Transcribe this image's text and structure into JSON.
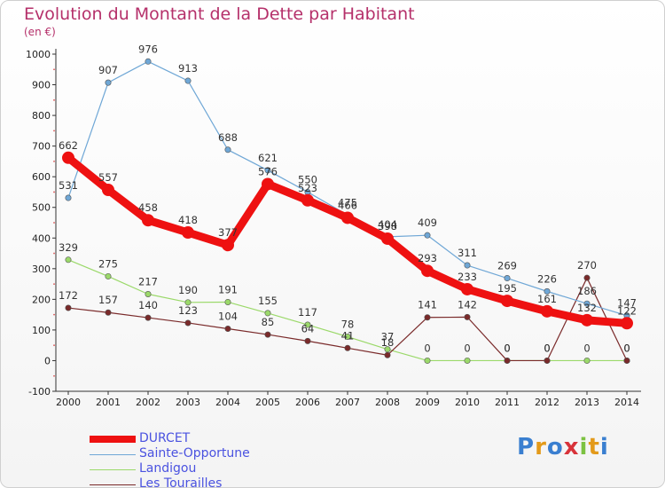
{
  "header": {
    "title": "Evolution du Montant de la Dette par Habitant",
    "unit": "(en €)"
  },
  "chart_data": {
    "type": "line",
    "title": "Evolution du Montant de la Dette par Habitant",
    "ylabel": "(en €)",
    "xlabel": "",
    "x": [
      2000,
      2001,
      2002,
      2003,
      2004,
      2005,
      2006,
      2007,
      2008,
      2009,
      2010,
      2011,
      2012,
      2013,
      2014
    ],
    "ylim": [
      -100,
      1000
    ],
    "yticks": [
      -100,
      0,
      100,
      200,
      300,
      400,
      500,
      600,
      700,
      800,
      900,
      1000
    ],
    "grid": false,
    "legend_position": "bottom-left",
    "series": [
      {
        "name": "DURCET",
        "color": "#ee1111",
        "values": [
          662,
          557,
          458,
          418,
          377,
          576,
          523,
          466,
          398,
          293,
          233,
          195,
          161,
          132,
          122
        ]
      },
      {
        "name": "Sainte-Opportune",
        "color": "#6fa7d6",
        "values": [
          531,
          907,
          976,
          913,
          688,
          621,
          550,
          475,
          404,
          409,
          311,
          269,
          226,
          186,
          147
        ]
      },
      {
        "name": "Landigou",
        "color": "#9bd96a",
        "values": [
          329,
          275,
          217,
          190,
          191,
          155,
          117,
          78,
          37,
          0,
          0,
          0,
          0,
          0,
          0
        ]
      },
      {
        "name": "Les Tourailles",
        "color": "#7a2a2a",
        "values": [
          172,
          157,
          140,
          123,
          104,
          85,
          64,
          41,
          18,
          141,
          142,
          0,
          0,
          270,
          0
        ]
      }
    ]
  },
  "legend": {
    "items": [
      {
        "label": "DURCET",
        "color": "#ee1111"
      },
      {
        "label": "Sainte-Opportune",
        "color": "#6fa7d6"
      },
      {
        "label": "Landigou",
        "color": "#9bd96a"
      },
      {
        "label": "Les Tourailles",
        "color": "#7a2a2a"
      }
    ]
  },
  "logo": {
    "letters": [
      "P",
      "r",
      "o",
      "x",
      "i",
      "t",
      "i"
    ],
    "colors": [
      "#3a7fd0",
      "#e39a1a",
      "#3a7fd0",
      "#d8333a",
      "#7cc242",
      "#e39a1a",
      "#3a7fd0"
    ]
  }
}
